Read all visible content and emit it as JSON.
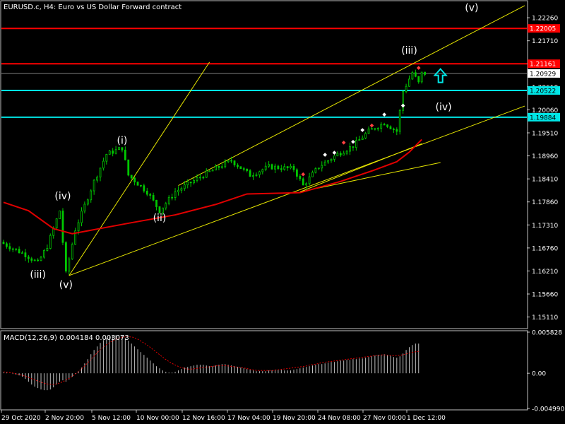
{
  "chart_header": "EURUSD.c, H4:  Euro vs US Dollar Forward contract",
  "macd_header": "MACD(12,26,9) 0.004184 0.003073",
  "colors": {
    "background": "#000000",
    "axis": "#c0c0c0",
    "candle": "#00c800",
    "ma": "#e00000",
    "trendline": "#e6e600",
    "resistance": "#ff0000",
    "support": "#00e6e6",
    "macd_hist": "#c0c0c0",
    "macd_signal": "#e00000",
    "arrow": "#00e6e6",
    "wave_label": "#ffffff"
  },
  "price_axis": {
    "range": [
      1.1485,
      1.2265
    ],
    "ticks": [
      "1.22260",
      "1.21710",
      "1.21160",
      "1.20610",
      "1.20060",
      "1.19510",
      "1.18960",
      "1.18410",
      "1.17860",
      "1.17310",
      "1.16760",
      "1.16210",
      "1.15660",
      "1.15110"
    ]
  },
  "price_markers": [
    {
      "label": "1.22005",
      "value": 1.22005,
      "kind": "resistance"
    },
    {
      "label": "1.21161",
      "value": 1.21161,
      "kind": "resistance"
    },
    {
      "label": "1.20929",
      "value": 1.20929,
      "kind": "current"
    },
    {
      "label": "1.20522",
      "value": 1.20522,
      "kind": "support"
    },
    {
      "label": "1.19884",
      "value": 1.19884,
      "kind": "support"
    }
  ],
  "macd_axis": {
    "ticks": [
      "0.005828",
      "0.00",
      "-0.004990"
    ],
    "range": [
      -0.00499,
      0.005828
    ]
  },
  "time_axis": [
    "29 Oct 2020",
    "2 Nov 20:00",
    "5 Nov 12:00",
    "10 Nov 00:00",
    "12 Nov 16:00",
    "17 Nov 04:00",
    "19 Nov 20:00",
    "24 Nov 08:00",
    "27 Nov 00:00",
    "1 Dec 12:00"
  ],
  "wave_labels": [
    {
      "text": "(iii)",
      "bar": 11,
      "price": 1.1605
    },
    {
      "text": "(iv)",
      "bar": 19,
      "price": 1.1792
    },
    {
      "text": "(v)",
      "bar": 20,
      "price": 1.158
    },
    {
      "text": "(i)",
      "bar": 38,
      "price": 1.1925
    },
    {
      "text": "(ii)",
      "bar": 50,
      "price": 1.174
    },
    {
      "text": "(iii)",
      "bar": 130,
      "price": 1.214
    },
    {
      "text": "(iv)",
      "bar": 141,
      "price": 1.2005
    },
    {
      "text": "(v)",
      "bar": 150,
      "price": 1.2242
    }
  ],
  "chart_data": {
    "type": "candlestick",
    "symbol": "EURUSD.c",
    "timeframe": "H4",
    "bars_visible": 168,
    "pivots": [
      {
        "bar": 0,
        "price": 1.169
      },
      {
        "bar": 8,
        "price": 1.166
      },
      {
        "bar": 12,
        "price": 1.164
      },
      {
        "bar": 15,
        "price": 1.168
      },
      {
        "bar": 19,
        "price": 1.1765
      },
      {
        "bar": 21,
        "price": 1.1615
      },
      {
        "bar": 24,
        "price": 1.172
      },
      {
        "bar": 30,
        "price": 1.1835
      },
      {
        "bar": 34,
        "price": 1.19
      },
      {
        "bar": 39,
        "price": 1.1915
      },
      {
        "bar": 41,
        "price": 1.185
      },
      {
        "bar": 47,
        "price": 1.181
      },
      {
        "bar": 51,
        "price": 1.1765
      },
      {
        "bar": 56,
        "price": 1.181
      },
      {
        "bar": 65,
        "price": 1.185
      },
      {
        "bar": 74,
        "price": 1.1885
      },
      {
        "bar": 80,
        "price": 1.185
      },
      {
        "bar": 86,
        "price": 1.187
      },
      {
        "bar": 94,
        "price": 1.1865
      },
      {
        "bar": 97,
        "price": 1.1825
      },
      {
        "bar": 102,
        "price": 1.187
      },
      {
        "bar": 108,
        "price": 1.19
      },
      {
        "bar": 113,
        "price": 1.192
      },
      {
        "bar": 118,
        "price": 1.1955
      },
      {
        "bar": 123,
        "price": 1.1975
      },
      {
        "bar": 127,
        "price": 1.1955
      },
      {
        "bar": 129,
        "price": 1.205
      },
      {
        "bar": 132,
        "price": 1.2095
      },
      {
        "bar": 134,
        "price": 1.207
      },
      {
        "bar": 135,
        "price": 1.2093
      }
    ],
    "moving_average": [
      {
        "bar": 0,
        "price": 1.1785
      },
      {
        "bar": 8,
        "price": 1.1765
      },
      {
        "bar": 16,
        "price": 1.1722
      },
      {
        "bar": 22,
        "price": 1.171
      },
      {
        "bar": 40,
        "price": 1.1735
      },
      {
        "bar": 55,
        "price": 1.1755
      },
      {
        "bar": 68,
        "price": 1.178
      },
      {
        "bar": 78,
        "price": 1.1805
      },
      {
        "bar": 95,
        "price": 1.1808
      },
      {
        "bar": 108,
        "price": 1.1835
      },
      {
        "bar": 118,
        "price": 1.186
      },
      {
        "bar": 126,
        "price": 1.1882
      },
      {
        "bar": 130,
        "price": 1.1905
      },
      {
        "bar": 134,
        "price": 1.1935
      }
    ],
    "trendlines": [
      {
        "from": {
          "bar": 21,
          "price": 1.161
        },
        "to": {
          "bar": 167,
          "price": 1.2015
        }
      },
      {
        "from": {
          "bar": 56,
          "price": 1.1825
        },
        "to": {
          "bar": 167,
          "price": 1.2255
        }
      },
      {
        "from": {
          "bar": 21,
          "price": 1.161
        },
        "to": {
          "bar": 66,
          "price": 1.212
        }
      },
      {
        "from": {
          "bar": 95,
          "price": 1.181
        },
        "to": {
          "bar": 140,
          "price": 1.188
        }
      },
      {
        "from": {
          "bar": 95,
          "price": 1.181
        },
        "to": {
          "bar": 134,
          "price": 1.1925
        }
      }
    ],
    "arrow": {
      "bar": 140,
      "price": 1.2085,
      "direction": "up"
    },
    "macd": {
      "histogram": [
        0.0001,
        0.0001,
        0.0,
        -0.0001,
        -0.0002,
        -0.0003,
        -0.0005,
        -0.0008,
        -0.0012,
        -0.0016,
        -0.0019,
        -0.0021,
        -0.0023,
        -0.0024,
        -0.0024,
        -0.0023,
        -0.002,
        -0.0016,
        -0.0012,
        -0.001,
        -0.0012,
        -0.0009,
        -0.0005,
        -0.0001,
        0.0003,
        0.0008,
        0.0014,
        0.002,
        0.0027,
        0.0033,
        0.0038,
        0.0043,
        0.0047,
        0.005,
        0.0052,
        0.0053,
        0.0054,
        0.0054,
        0.0053,
        0.005,
        0.0046,
        0.0042,
        0.0038,
        0.0034,
        0.003,
        0.0026,
        0.0022,
        0.0018,
        0.0014,
        0.001,
        0.0007,
        0.0004,
        0.0002,
        0.0001,
        0.0001,
        0.0002,
        0.0004,
        0.0006,
        0.0008,
        0.0009,
        0.001,
        0.0011,
        0.0012,
        0.0012,
        0.0012,
        0.0011,
        0.001,
        0.001,
        0.0011,
        0.0012,
        0.0013,
        0.0013,
        0.0012,
        0.0011,
        0.001,
        0.0009,
        0.0008,
        0.0007,
        0.0006,
        0.0005,
        0.0004,
        0.0003,
        0.0003,
        0.0003,
        0.0003,
        0.0004,
        0.0004,
        0.0005,
        0.0005,
        0.0005,
        0.0004,
        0.0004,
        0.0004,
        0.0005,
        0.0006,
        0.0007,
        0.0008,
        0.0009,
        0.001,
        0.0011,
        0.0012,
        0.0013,
        0.0013,
        0.0014,
        0.0015,
        0.0016,
        0.0016,
        0.0017,
        0.0018,
        0.0018,
        0.0019,
        0.0019,
        0.002,
        0.002,
        0.0021,
        0.0021,
        0.0022,
        0.0023,
        0.0024,
        0.0025,
        0.0026,
        0.0026,
        0.0027,
        0.0026,
        0.0025,
        0.0023,
        0.0022,
        0.0024,
        0.0028,
        0.0033,
        0.0037,
        0.004,
        0.0042,
        0.0042
      ],
      "signal": [
        0.0002,
        0.0001,
        0.0,
        -0.0002,
        -0.0004,
        -0.0007,
        -0.001,
        -0.0013,
        -0.0015,
        -0.0016,
        -0.0015,
        -0.0012,
        -0.0008,
        -0.0003,
        0.0003,
        0.001,
        0.0018,
        0.0026,
        0.0034,
        0.004,
        0.0045,
        0.0049,
        0.0051,
        0.0052,
        0.0051,
        0.0048,
        0.0043,
        0.0038,
        0.0032,
        0.0026,
        0.002,
        0.0015,
        0.0011,
        0.0008,
        0.0006,
        0.0006,
        0.0007,
        0.0008,
        0.0009,
        0.001,
        0.0011,
        0.0011,
        0.001,
        0.0009,
        0.0008,
        0.0007,
        0.0005,
        0.0004,
        0.0004,
        0.0004,
        0.0004,
        0.0005,
        0.0006,
        0.0007,
        0.0008,
        0.0009,
        0.001,
        0.0012,
        0.0013,
        0.0015,
        0.0016,
        0.0017,
        0.0018,
        0.0019,
        0.002,
        0.0021,
        0.0022,
        0.0023,
        0.0024,
        0.0025,
        0.0026,
        0.0026,
        0.0025,
        0.0025,
        0.0026,
        0.0028,
        0.003,
        0.0031
      ]
    }
  }
}
